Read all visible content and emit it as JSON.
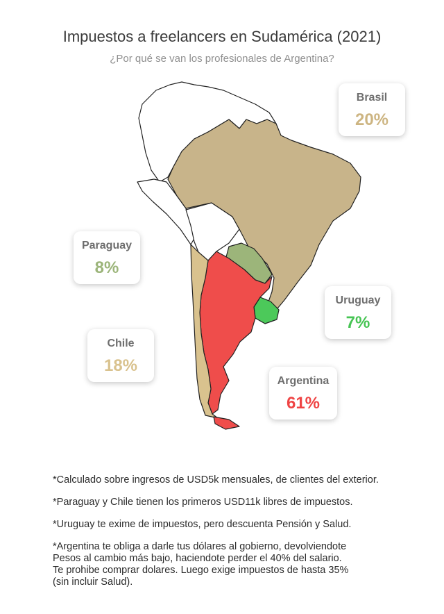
{
  "title": "Impuestos a freelancers en Sudamérica (2021)",
  "subtitle": "¿Por qué se van los profesionales de Argentina?",
  "countries": {
    "brasil": {
      "name": "Brasil",
      "tax_percent": 20,
      "label": "20%",
      "color": "#c8b48a"
    },
    "paraguay": {
      "name": "Paraguay",
      "tax_percent": 8,
      "label": "8%",
      "color": "#9cb57a"
    },
    "uruguay": {
      "name": "Uruguay",
      "tax_percent": 7,
      "label": "7%",
      "color": "#4cc95a"
    },
    "chile": {
      "name": "Chile",
      "tax_percent": 18,
      "label": "18%",
      "color": "#d9c28e"
    },
    "argentina": {
      "name": "Argentina",
      "tax_percent": 61,
      "label": "61%",
      "color": "#ef4d4b"
    }
  },
  "notes": [
    "*Calculado sobre ingresos de USD5k mensuales, de clientes del exterior.",
    "*Paraguay y Chile tienen los primeros USD11k libres de impuestos.",
    "*Uruguay te exime de impuestos, pero descuenta Pensión y Salud.",
    "*Argentina te obliga a darle tus dólares al gobierno, devolviendote\nPesos al cambio más bajo, haciendote perder el 40% del salario.\nTe prohibe comprar dolares. Luego exige impuestos de hasta 35%\n(sin incluir Salud)."
  ]
}
